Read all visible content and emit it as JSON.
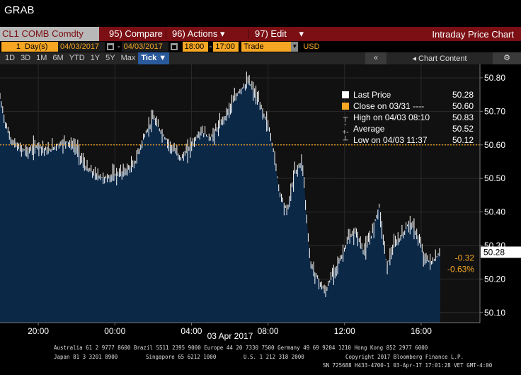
{
  "app": {
    "title": "GRAB"
  },
  "command_bar": {
    "ticker": "CL1 COMB Comdty",
    "compare": {
      "num": "95)",
      "label": "Compare"
    },
    "actions": {
      "num": "96)",
      "label": "Actions"
    },
    "edit": {
      "num": "97)",
      "label": "Edit"
    },
    "chart_title": "Intraday Price Chart"
  },
  "params": {
    "period_count": "1",
    "period_unit": "Day(s)",
    "start_date": "04/03/2017",
    "end_date": "04/03/2017",
    "start_time": "18:00",
    "end_time": "17:00",
    "event": "Trade",
    "currency": "USD"
  },
  "range_bar": {
    "buttons": [
      "1D",
      "3D",
      "1M",
      "6M",
      "YTD",
      "1Y",
      "5Y",
      "Max"
    ],
    "active": "Tick",
    "collapse": "«",
    "content_label": "Chart Content",
    "gear": "⚙"
  },
  "legend": {
    "last_price": {
      "label": "Last Price",
      "value": "50.28"
    },
    "close": {
      "label": "Close on 03/31",
      "dashes": "----",
      "value": "50.60"
    },
    "high": {
      "label": "High on 04/03 08:10",
      "value": "50.83"
    },
    "average": {
      "label": "Average",
      "value": "50.52"
    },
    "low": {
      "label": "Low on 04/03 11:37",
      "value": "50.12"
    }
  },
  "price_tags": {
    "last": "50.28",
    "change": "-0.32",
    "change_pct": "-0.63%"
  },
  "colors": {
    "area_fill": "#0c2847",
    "ref_line": "#f5a623",
    "accent_orange": "#f5a623",
    "command_red": "#7b0f14"
  },
  "footer": {
    "line1": "Australia 61 2 9777 8600 Brazil 5511 2395 9000 Europe 44 20 7330 7500 Germany 49 69 9204 1210 Hong Kong 852 2977 6000",
    "line2_left": "Japan 81 3 3201 8900",
    "line2_mid": "Singapore 65 6212 1000",
    "line2_mid2": "U.S. 1 212 318 2000",
    "line2_right": "Copyright 2017 Bloomberg Finance L.P.",
    "line3": "SN 725688 H433-4700-1 03-Apr-17 17:01:28 VET  GMT-4:00"
  },
  "chart_data": {
    "type": "line",
    "title": "",
    "xlabel": "",
    "ylabel": "",
    "date_label": "03 Apr 2017",
    "x_tick_labels": [
      "20:00",
      "00:00",
      "04:00",
      "08:00",
      "12:00",
      "16:00"
    ],
    "x_tick_hours": [
      2,
      6,
      10,
      14,
      18,
      22
    ],
    "y_tick_labels": [
      "50.10",
      "50.20",
      "50.30",
      "50.40",
      "50.50",
      "50.60",
      "50.70",
      "50.80"
    ],
    "ylim": [
      50.07,
      50.84
    ],
    "xlim_hours": [
      0,
      23
    ],
    "reference_line": 50.6,
    "series": [
      {
        "name": "Last Price",
        "hours": [
          0.0,
          0.3,
          0.6,
          1.0,
          1.5,
          2.0,
          2.5,
          3.0,
          3.5,
          4.0,
          4.5,
          5.0,
          5.5,
          6.0,
          6.5,
          7.0,
          7.5,
          8.0,
          8.5,
          9.0,
          9.5,
          10.0,
          10.5,
          11.0,
          11.5,
          12.0,
          12.5,
          13.0,
          13.5,
          14.0,
          14.3,
          14.6,
          15.0,
          15.4,
          15.8,
          16.2,
          16.6,
          17.0,
          17.4,
          17.8,
          18.2,
          18.6,
          19.0,
          19.4,
          19.8,
          20.2,
          20.6,
          21.0,
          21.4,
          21.8,
          22.2,
          22.6,
          23.0
        ],
        "values": [
          50.74,
          50.66,
          50.61,
          50.59,
          50.58,
          50.6,
          50.58,
          50.6,
          50.61,
          50.59,
          50.53,
          50.51,
          50.5,
          50.51,
          50.52,
          50.54,
          50.62,
          50.68,
          50.63,
          50.59,
          50.56,
          50.6,
          50.64,
          50.62,
          50.66,
          50.71,
          50.76,
          50.79,
          50.73,
          50.66,
          50.58,
          50.46,
          50.4,
          50.52,
          50.55,
          50.25,
          50.2,
          50.16,
          50.22,
          50.26,
          50.32,
          50.34,
          50.28,
          50.33,
          50.42,
          50.24,
          50.3,
          50.33,
          50.37,
          50.33,
          50.26,
          50.25,
          50.28
        ]
      }
    ]
  }
}
